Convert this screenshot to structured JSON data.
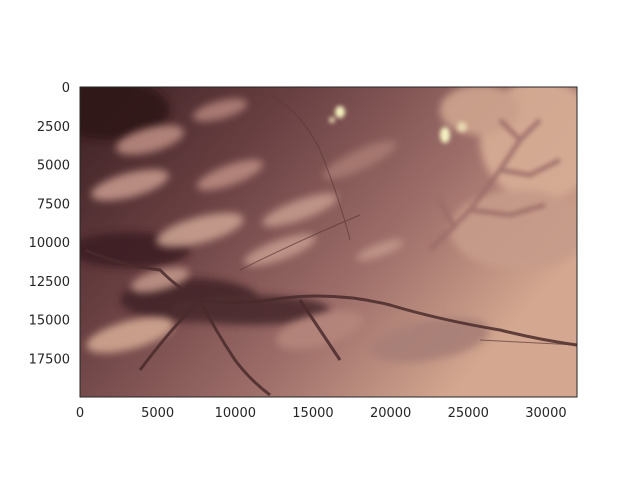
{
  "chart_data": {
    "type": "heatmap",
    "title": "",
    "xlabel": "",
    "ylabel": "",
    "xlim": [
      0,
      32000
    ],
    "ylim": [
      20000,
      0
    ],
    "x_ticks": [
      0,
      5000,
      10000,
      15000,
      20000,
      25000,
      30000
    ],
    "x_tick_labels": [
      "0",
      "5000",
      "10000",
      "15000",
      "20000",
      "25000",
      "30000"
    ],
    "y_ticks": [
      0,
      2500,
      5000,
      7500,
      10000,
      12500,
      15000,
      17500
    ],
    "y_tick_labels": [
      "0",
      "2500",
      "5000",
      "7500",
      "10000",
      "12500",
      "15000",
      "17500"
    ],
    "grid": false,
    "colorbar": false,
    "colormap": "pink",
    "colors": {
      "low": "#3a1f22",
      "mid": "#8a5a58",
      "high": "#d4a890",
      "peak": "#f4f2c0"
    }
  }
}
